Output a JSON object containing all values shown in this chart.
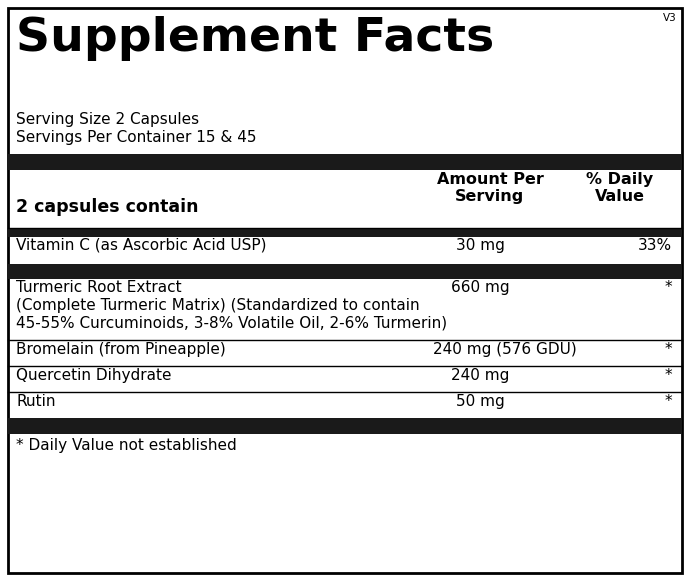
{
  "title": "Supplement Facts",
  "version": "V3",
  "serving_size": "Serving Size 2 Capsules",
  "servings_per_container": "Servings Per Container 15 & 45",
  "col_header_ingredient": "2 capsules contain",
  "col_header_amount": "Amount Per\nServing",
  "col_header_daily": "% Daily\nValue",
  "footnote": "* Daily Value not established",
  "bg_color": "#ffffff",
  "border_color": "#000000",
  "thick_bar_color": "#1a1a1a",
  "text_color": "#000000",
  "title_fontsize": 34,
  "header_fontsize": 11.5,
  "body_fontsize": 11,
  "version_fontsize": 7.5
}
